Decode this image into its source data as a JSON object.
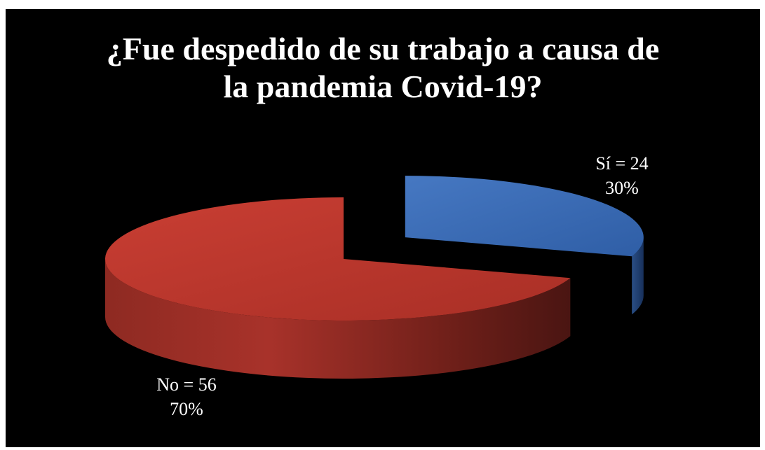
{
  "chart_data": {
    "type": "pie",
    "style": "3d-exploded",
    "title_lines": [
      "¿Fue despedido de su trabajo a causa de",
      "la pandemia Covid-19?"
    ],
    "slices": [
      {
        "name": "Sí",
        "value": 24,
        "percent": 30,
        "label_line1": "Sí = 24",
        "label_line2": "30%",
        "color": "#3a6db5",
        "exploded": true
      },
      {
        "name": "No",
        "value": 56,
        "percent": 70,
        "label_line1": "No = 56",
        "label_line2": "70%",
        "color": "#c0392f",
        "exploded": false
      }
    ],
    "background": "#000000"
  }
}
